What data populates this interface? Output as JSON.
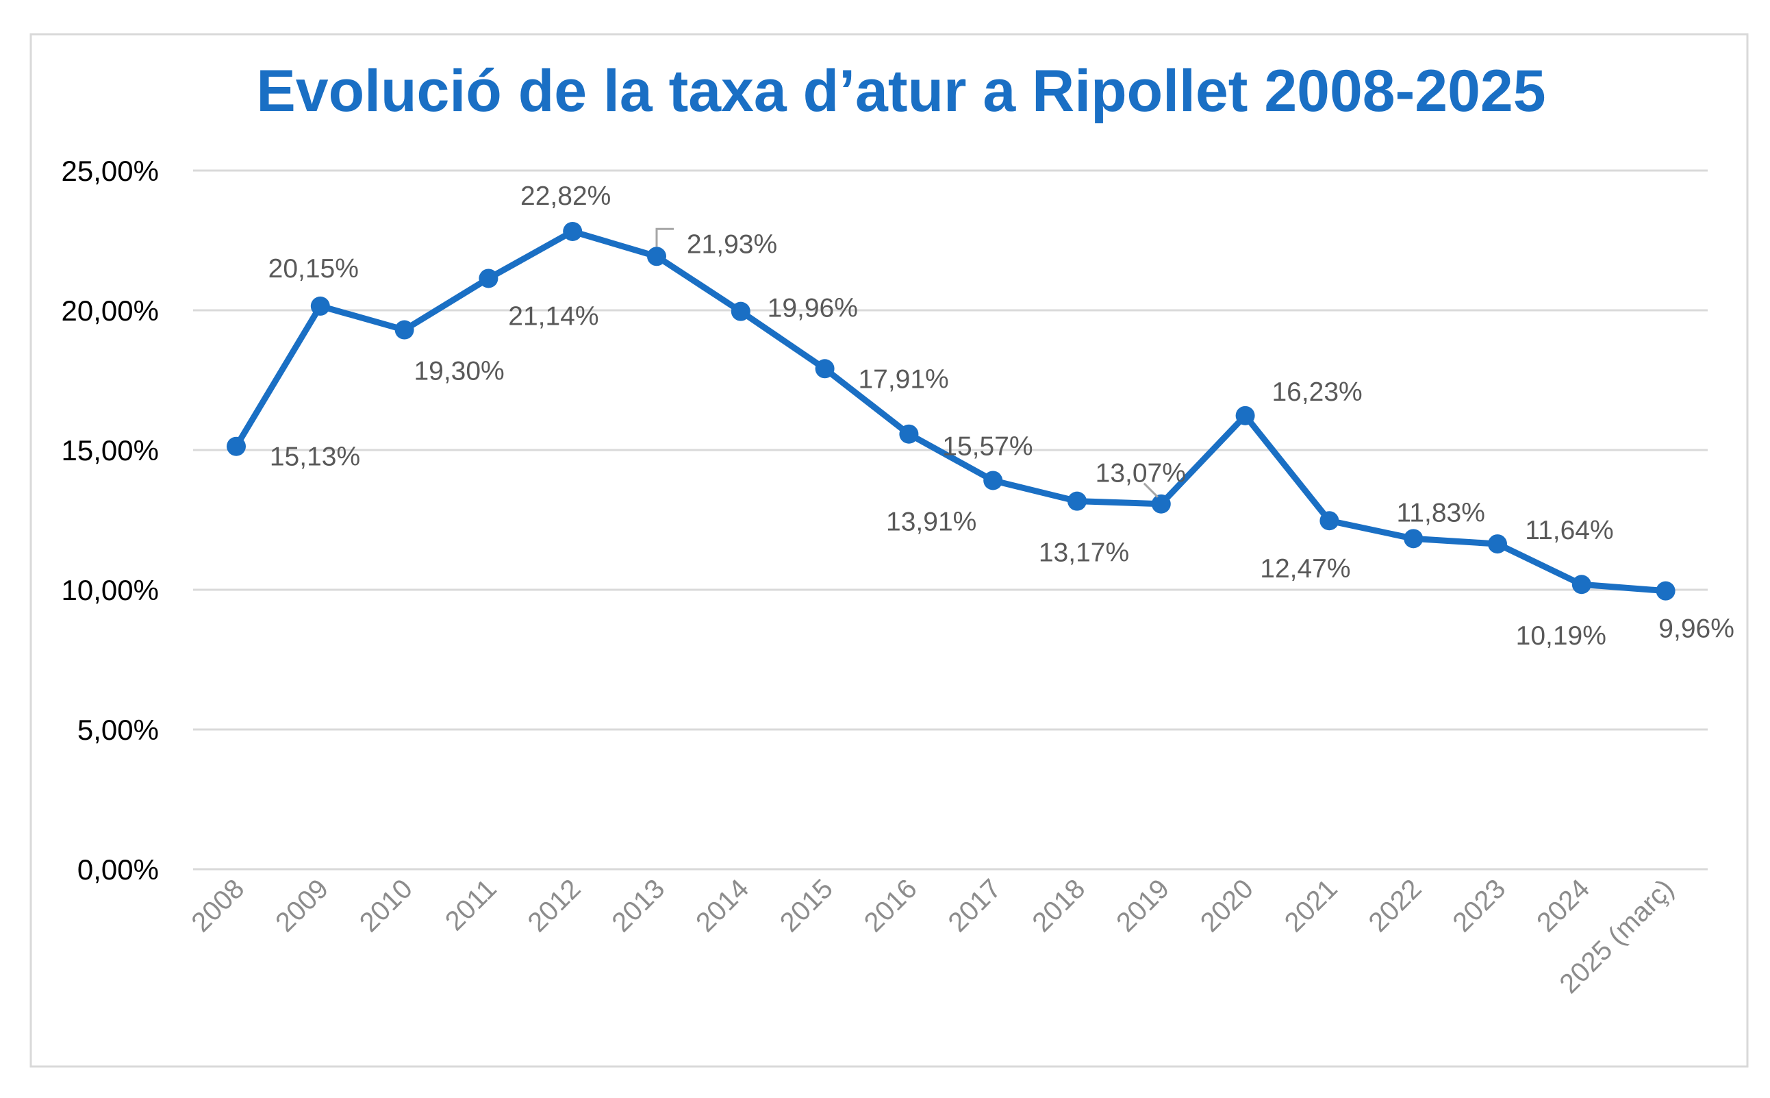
{
  "chart_data": {
    "type": "line",
    "title": "Evolució de la taxa d’atur a Ripollet 2008-2025",
    "xlabel": "",
    "ylabel": "",
    "categories": [
      "2008",
      "2009",
      "2010",
      "2011",
      "2012",
      "2013",
      "2014",
      "2015",
      "2016",
      "2017",
      "2018",
      "2019",
      "2020",
      "2021",
      "2022",
      "2023",
      "2024",
      "2025 (març)"
    ],
    "values": [
      15.13,
      20.15,
      19.3,
      21.14,
      22.82,
      21.93,
      19.96,
      17.91,
      15.57,
      13.91,
      13.17,
      13.07,
      16.23,
      12.47,
      11.83,
      11.64,
      10.19,
      9.96
    ],
    "data_labels": [
      "15,13%",
      "20,15%",
      "19,30%",
      "21,14%",
      "22,82%",
      "21,93%",
      "19,96%",
      "17,91%",
      "15,57%",
      "13,91%",
      "13,17%",
      "13,07%",
      "16,23%",
      "12,47%",
      "11,83%",
      "11,64%",
      "10,19%",
      "9,96%"
    ],
    "yticks": [
      "0,00%",
      "5,00%",
      "10,00%",
      "15,00%",
      "20,00%",
      "25,00%"
    ],
    "ylim": [
      0,
      25
    ],
    "grid": true,
    "legend": "none",
    "colors": {
      "line": "#1a6fc4",
      "title": "#1a6fc4",
      "grid": "#d9d9d9",
      "labels": "#595959"
    }
  }
}
